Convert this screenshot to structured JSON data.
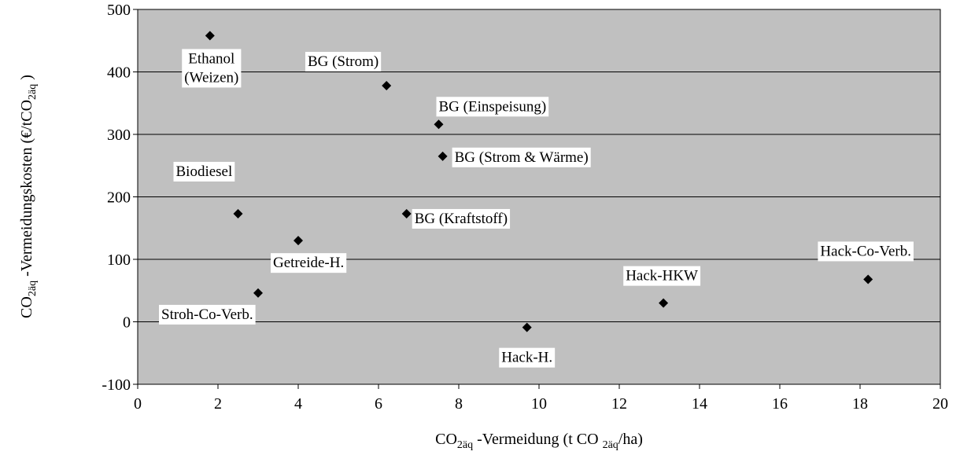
{
  "chart_data": {
    "type": "scatter",
    "title": "",
    "xlabel": {
      "base": "CO",
      "sub1": "2äq",
      "mid": " -Vermeidung (t CO ",
      "sub2": "2äq",
      "end": "/ha)"
    },
    "ylabel": {
      "base": "CO",
      "sub1": "2äq",
      "mid": " -Vermeidungskosten (€/tCO",
      "sub2": "2äq",
      "end": " )"
    },
    "xlim": [
      0,
      20
    ],
    "ylim": [
      -100,
      500
    ],
    "xticks": [
      0,
      2,
      4,
      6,
      8,
      10,
      12,
      14,
      16,
      18,
      20
    ],
    "yticks": [
      -100,
      0,
      100,
      200,
      300,
      400,
      500
    ],
    "grid": "horizontal",
    "plot_background": "#c0c0c0",
    "marker": "diamond",
    "marker_color": "#000000",
    "points": [
      {
        "label": [
          "Ethanol",
          "(Weizen)"
        ],
        "x": 1.8,
        "y": 458
      },
      {
        "label": [
          "BG (Strom)"
        ],
        "x": 6.2,
        "y": 378
      },
      {
        "label": [
          "BG (Einspeisung)"
        ],
        "x": 7.5,
        "y": 316
      },
      {
        "label": [
          "BG (Strom & Wärme)"
        ],
        "x": 7.6,
        "y": 265
      },
      {
        "label": [
          "Biodiesel"
        ],
        "x": 2.5,
        "y": 173
      },
      {
        "label": [
          "BG (Kraftstoff)"
        ],
        "x": 6.7,
        "y": 173
      },
      {
        "label": [
          "Getreide-H."
        ],
        "x": 4.0,
        "y": 130
      },
      {
        "label": [
          "Stroh-Co-Verb."
        ],
        "x": 3.0,
        "y": 46
      },
      {
        "label": [
          "Hack-H."
        ],
        "x": 9.7,
        "y": -9
      },
      {
        "label": [
          "Hack-HKW"
        ],
        "x": 13.1,
        "y": 30
      },
      {
        "label": [
          "Hack-Co-Verb."
        ],
        "x": 18.2,
        "y": 68
      }
    ]
  }
}
